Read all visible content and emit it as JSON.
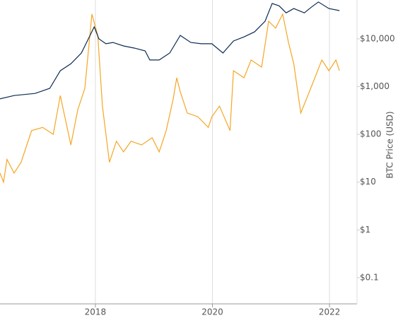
{
  "chart_data": {
    "type": "line",
    "y_label": "BTC Price (USD)",
    "log_y": true,
    "grid_x": true,
    "xlim": [
      2016.37,
      2022.47
    ],
    "xticks": [
      2018,
      2020,
      2022
    ],
    "ylim": [
      0.0283,
      65000
    ],
    "yticks": [
      {
        "value": 0.1,
        "label": "$0.1"
      },
      {
        "value": 1,
        "label": "$1"
      },
      {
        "value": 10,
        "label": "$10"
      },
      {
        "value": 100,
        "label": "$100"
      },
      {
        "value": 1000,
        "label": "$1,000"
      },
      {
        "value": 10000,
        "label": "$10,000"
      }
    ],
    "series": [
      {
        "color": "#f5a623",
        "x": [
          2016.37,
          2016.43,
          2016.49,
          2016.61,
          2016.73,
          2016.91,
          2017.1,
          2017.28,
          2017.4,
          2017.58,
          2017.7,
          2017.82,
          2017.94,
          2018.04,
          2018.12,
          2018.24,
          2018.36,
          2018.48,
          2018.61,
          2018.79,
          2018.97,
          2019.09,
          2019.21,
          2019.33,
          2019.39,
          2019.45,
          2019.57,
          2019.75,
          2019.93,
          2019.99,
          2020.12,
          2020.3,
          2020.36,
          2020.54,
          2020.66,
          2020.84,
          2020.96,
          2021.08,
          2021.2,
          2021.3,
          2021.39,
          2021.51,
          2021.63,
          2021.75,
          2021.87,
          2021.99,
          2022.11,
          2022.17
        ],
        "values": [
          15.5,
          10,
          30,
          15.5,
          26,
          120,
          140,
          100,
          650,
          60,
          330,
          920,
          33000,
          11800,
          390,
          26,
          72,
          43,
          72,
          60,
          85,
          43,
          120,
          550,
          1530,
          780,
          280,
          235,
          140,
          235,
          390,
          120,
          2150,
          1530,
          3600,
          2560,
          23400,
          16700,
          33000,
          8400,
          3000,
          280,
          650,
          1530,
          3600,
          2150,
          3600,
          2150
        ]
      },
      {
        "color": "#0d2b52",
        "x": [
          2016.37,
          2016.61,
          2016.97,
          2017.22,
          2017.4,
          2017.58,
          2017.76,
          2017.88,
          2017.98,
          2018.06,
          2018.18,
          2018.3,
          2018.48,
          2018.67,
          2018.85,
          2018.93,
          2019.09,
          2019.27,
          2019.45,
          2019.63,
          2019.81,
          2019.99,
          2020.18,
          2020.36,
          2020.54,
          2020.72,
          2020.9,
          2021.02,
          2021.14,
          2021.26,
          2021.39,
          2021.57,
          2021.69,
          2021.81,
          2021.99,
          2022.17
        ],
        "values": [
          553,
          650,
          720,
          920,
          2150,
          3000,
          5060,
          10000,
          17800,
          10000,
          7900,
          8400,
          7100,
          6400,
          5600,
          3600,
          3600,
          5060,
          11800,
          8400,
          7900,
          7900,
          5060,
          9000,
          11000,
          14000,
          23400,
          55000,
          49000,
          35000,
          43000,
          35000,
          46000,
          59000,
          43000,
          39000
        ]
      }
    ]
  }
}
